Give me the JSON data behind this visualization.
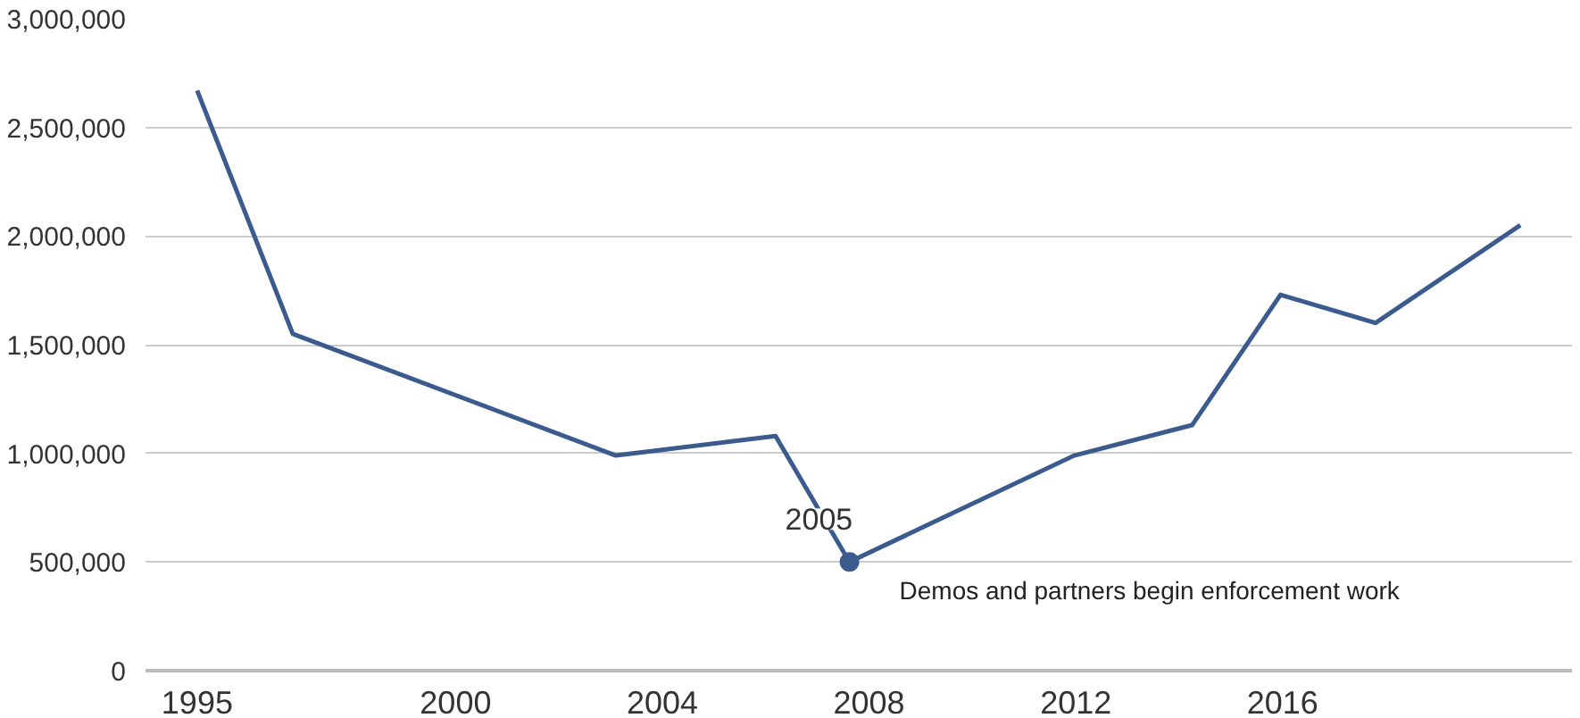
{
  "chart_data": {
    "type": "line",
    "x": [
      1995,
      1996.85,
      2003.1,
      2006.19,
      2007.62,
      2011.97,
      2014.25,
      2015.96,
      2017.8,
      2020.6
    ],
    "series": [
      {
        "color": "#3b5b8f",
        "values": [
          2670000,
          1550000,
          990000,
          1080000,
          500000,
          990000,
          1130000,
          1730000,
          1600000,
          2050000
        ]
      }
    ],
    "xlim": [
      1994,
      2021.6
    ],
    "xticks": [
      1995,
      2000,
      2004,
      2008,
      2012,
      2016
    ],
    "ylim": [
      0,
      3000000
    ],
    "yticks": [
      {
        "value": 0,
        "label": "0"
      },
      {
        "value": 500000,
        "label": "500,000"
      },
      {
        "value": 1000000,
        "label": "1,000,000"
      },
      {
        "value": 1500000,
        "label": "1,500,000"
      },
      {
        "value": 2000000,
        "label": "2,000,000"
      },
      {
        "value": 2500000,
        "label": "2,500,000"
      },
      {
        "value": 3000000,
        "label": "3,000,000"
      }
    ],
    "grid": "y",
    "marker": "none",
    "line_style": "solid",
    "annotations": [
      {
        "text": "2005",
        "x": 2007.62,
        "y": 500000
      },
      {
        "text": "Demos and partners begin enforcement work",
        "x": 2007.62,
        "y": 500000
      }
    ]
  }
}
